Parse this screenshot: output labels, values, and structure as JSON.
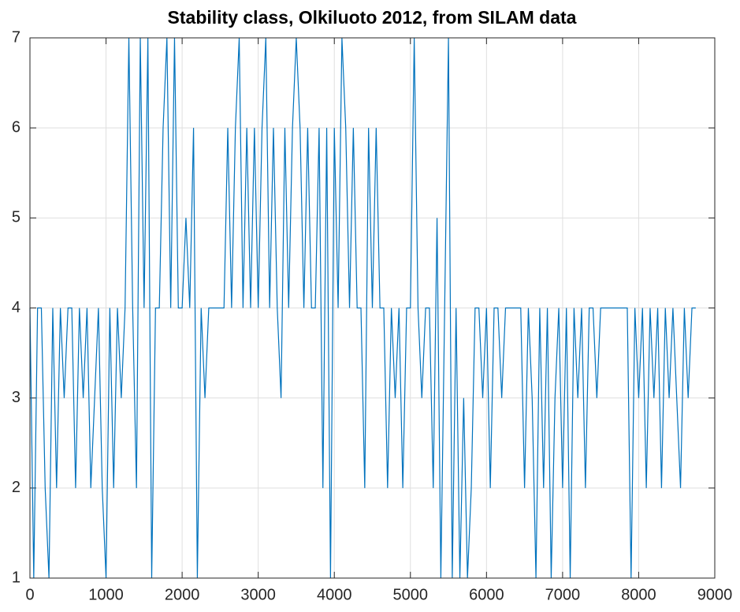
{
  "chart_data": {
    "type": "line",
    "title": "Stability class, Olkiluoto 2012, from SILAM data",
    "color": "#0072bd",
    "grid": true,
    "xlim": [
      0,
      9000
    ],
    "xticks": [
      0,
      1000,
      2000,
      3000,
      4000,
      5000,
      6000,
      7000,
      8000,
      9000
    ],
    "ylim": [
      1,
      7
    ],
    "yticks": [
      1,
      2,
      3,
      4,
      5,
      6,
      7
    ],
    "x": [
      0,
      50,
      100,
      150,
      200,
      250,
      300,
      350,
      400,
      450,
      500,
      550,
      600,
      650,
      700,
      750,
      800,
      850,
      900,
      950,
      1000,
      1050,
      1100,
      1150,
      1200,
      1250,
      1300,
      1350,
      1400,
      1450,
      1500,
      1550,
      1600,
      1650,
      1700,
      1750,
      1800,
      1850,
      1900,
      1950,
      2000,
      2050,
      2100,
      2150,
      2200,
      2250,
      2300,
      2350,
      2400,
      2450,
      2500,
      2550,
      2600,
      2650,
      2700,
      2750,
      2800,
      2850,
      2900,
      2950,
      3000,
      3050,
      3100,
      3150,
      3200,
      3250,
      3300,
      3350,
      3400,
      3450,
      3500,
      3550,
      3600,
      3650,
      3700,
      3750,
      3800,
      3850,
      3900,
      3950,
      4000,
      4050,
      4100,
      4150,
      4200,
      4250,
      4300,
      4350,
      4400,
      4450,
      4500,
      4550,
      4600,
      4650,
      4700,
      4750,
      4800,
      4850,
      4900,
      4950,
      5000,
      5050,
      5100,
      5150,
      5200,
      5250,
      5300,
      5350,
      5400,
      5450,
      5500,
      5550,
      5600,
      5650,
      5700,
      5750,
      5800,
      5850,
      5900,
      5950,
      6000,
      6050,
      6100,
      6150,
      6200,
      6250,
      6300,
      6350,
      6400,
      6450,
      6500,
      6550,
      6600,
      6650,
      6700,
      6750,
      6800,
      6850,
      6900,
      6950,
      7000,
      7050,
      7100,
      7150,
      7200,
      7250,
      7300,
      7350,
      7400,
      7450,
      7500,
      7550,
      7600,
      7650,
      7700,
      7750,
      7800,
      7850,
      7900,
      7950,
      8000,
      8050,
      8100,
      8150,
      8200,
      8250,
      8300,
      8350,
      8400,
      8450,
      8500,
      8550,
      8600,
      8650,
      8700,
      8750
    ],
    "values": [
      4,
      1,
      4,
      4,
      2,
      1,
      4,
      2,
      4,
      3,
      4,
      4,
      2,
      4,
      3,
      4,
      2,
      3,
      4,
      2,
      1,
      4,
      2,
      4,
      3,
      4,
      7,
      4,
      2,
      7,
      4,
      7,
      1,
      4,
      4,
      6,
      7,
      4,
      7,
      4,
      4,
      5,
      4,
      6,
      1,
      4,
      3,
      4,
      4,
      4,
      4,
      4,
      6,
      4,
      6,
      7,
      4,
      6,
      4,
      6,
      4,
      6,
      7,
      4,
      6,
      4,
      3,
      6,
      4,
      6,
      7,
      6,
      4,
      6,
      4,
      4,
      6,
      2,
      6,
      1,
      6,
      4,
      7,
      6,
      4,
      6,
      4,
      4,
      2,
      6,
      4,
      6,
      4,
      4,
      2,
      4,
      3,
      4,
      2,
      4,
      4,
      7,
      4,
      3,
      4,
      4,
      2,
      5,
      1,
      4,
      7,
      1,
      4,
      1,
      3,
      1,
      2,
      4,
      4,
      3,
      4,
      2,
      4,
      4,
      3,
      4,
      4,
      4,
      4,
      4,
      2,
      4,
      3,
      1,
      4,
      2,
      4,
      1,
      3,
      4,
      2,
      4,
      1,
      4,
      3,
      4,
      2,
      4,
      4,
      3,
      4,
      4,
      4,
      4,
      4,
      4,
      4,
      4,
      1,
      4,
      3,
      4,
      2,
      4,
      3,
      4,
      2,
      4,
      3,
      4,
      3,
      2,
      4,
      3,
      4,
      4
    ]
  }
}
